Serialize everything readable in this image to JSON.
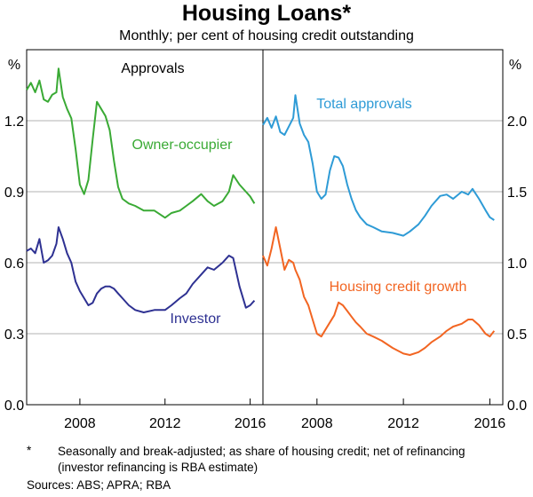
{
  "header": {
    "title": "Housing Loans*",
    "subtitle": "Monthly; per cent of housing credit outstanding"
  },
  "footer": {
    "footnote_mark": "*",
    "footnote": "Seasonally and break-adjusted; as share of housing credit; net of refinancing (investor refinancing is RBA estimate)",
    "sources": "Sources:   ABS; APRA; RBA"
  },
  "chart_data": [
    {
      "type": "line",
      "panel_title": "Approvals",
      "ylabel": "%",
      "ylim": [
        0,
        1.5
      ],
      "yticks": [
        0.0,
        0.3,
        0.6,
        0.9,
        1.2
      ],
      "ytick_labels": [
        "0.0",
        "0.3",
        "0.6",
        "0.9",
        "1.2"
      ],
      "xlim": [
        2005.5,
        2016.6
      ],
      "xticks": [
        2008,
        2012,
        2016
      ],
      "xtick_labels": [
        "2008",
        "2012",
        "2016"
      ],
      "grid": true,
      "series": [
        {
          "name": "Owner-occupier",
          "color": "#3aaa35",
          "x": [
            2005.5,
            2005.7,
            2005.9,
            2006.1,
            2006.3,
            2006.5,
            2006.7,
            2006.9,
            2007.0,
            2007.2,
            2007.4,
            2007.6,
            2007.8,
            2008.0,
            2008.2,
            2008.4,
            2008.6,
            2008.8,
            2009.0,
            2009.2,
            2009.4,
            2009.6,
            2009.8,
            2010.0,
            2010.3,
            2010.6,
            2011.0,
            2011.5,
            2012.0,
            2012.3,
            2012.7,
            2013.0,
            2013.3,
            2013.7,
            2014.0,
            2014.3,
            2014.7,
            2015.0,
            2015.2,
            2015.5,
            2015.8,
            2016.0,
            2016.2
          ],
          "values": [
            1.33,
            1.36,
            1.32,
            1.37,
            1.29,
            1.28,
            1.31,
            1.32,
            1.42,
            1.3,
            1.25,
            1.21,
            1.08,
            0.93,
            0.89,
            0.95,
            1.12,
            1.28,
            1.25,
            1.22,
            1.16,
            1.03,
            0.92,
            0.87,
            0.85,
            0.84,
            0.82,
            0.82,
            0.79,
            0.81,
            0.82,
            0.84,
            0.86,
            0.89,
            0.86,
            0.84,
            0.86,
            0.9,
            0.97,
            0.93,
            0.9,
            0.88,
            0.85
          ]
        },
        {
          "name": "Investor",
          "color": "#2e3192",
          "x": [
            2005.5,
            2005.7,
            2005.9,
            2006.1,
            2006.3,
            2006.5,
            2006.7,
            2006.9,
            2007.0,
            2007.2,
            2007.4,
            2007.6,
            2007.8,
            2008.0,
            2008.2,
            2008.4,
            2008.6,
            2008.8,
            2009.0,
            2009.2,
            2009.4,
            2009.6,
            2009.8,
            2010.0,
            2010.3,
            2010.6,
            2011.0,
            2011.5,
            2012.0,
            2012.3,
            2012.7,
            2013.0,
            2013.3,
            2013.7,
            2014.0,
            2014.3,
            2014.7,
            2015.0,
            2015.2,
            2015.5,
            2015.8,
            2016.0,
            2016.2
          ],
          "values": [
            0.65,
            0.66,
            0.64,
            0.7,
            0.6,
            0.61,
            0.63,
            0.68,
            0.75,
            0.7,
            0.64,
            0.6,
            0.52,
            0.48,
            0.45,
            0.42,
            0.43,
            0.47,
            0.49,
            0.5,
            0.5,
            0.49,
            0.47,
            0.45,
            0.42,
            0.4,
            0.39,
            0.4,
            0.4,
            0.42,
            0.45,
            0.47,
            0.51,
            0.55,
            0.58,
            0.57,
            0.6,
            0.63,
            0.62,
            0.5,
            0.41,
            0.42,
            0.44
          ]
        }
      ],
      "annotations": [
        {
          "text": "Owner-occupier",
          "color": "#3aaa35"
        },
        {
          "text": "Investor",
          "color": "#2e3192"
        }
      ]
    },
    {
      "type": "line",
      "panel_title": "",
      "ylabel": "%",
      "ylim": [
        0,
        2.5
      ],
      "yticks": [
        0.0,
        0.5,
        1.0,
        1.5,
        2.0
      ],
      "ytick_labels": [
        "0.0",
        "0.5",
        "1.0",
        "1.5",
        "2.0"
      ],
      "xlim": [
        2005.5,
        2016.6
      ],
      "xticks": [
        2008,
        2012,
        2016
      ],
      "xtick_labels": [
        "2008",
        "2012",
        "2016"
      ],
      "grid": true,
      "series": [
        {
          "name": "Total approvals",
          "color": "#2e9bd6",
          "x": [
            2005.5,
            2005.7,
            2005.9,
            2006.1,
            2006.3,
            2006.5,
            2006.7,
            2006.9,
            2007.0,
            2007.2,
            2007.4,
            2007.6,
            2007.8,
            2008.0,
            2008.2,
            2008.4,
            2008.6,
            2008.8,
            2009.0,
            2009.2,
            2009.4,
            2009.6,
            2009.8,
            2010.0,
            2010.3,
            2010.6,
            2011.0,
            2011.5,
            2012.0,
            2012.3,
            2012.7,
            2013.0,
            2013.3,
            2013.7,
            2014.0,
            2014.3,
            2014.7,
            2015.0,
            2015.2,
            2015.5,
            2015.8,
            2016.0,
            2016.2
          ],
          "values": [
            1.97,
            2.02,
            1.95,
            2.03,
            1.92,
            1.9,
            1.96,
            2.02,
            2.18,
            1.98,
            1.9,
            1.85,
            1.7,
            1.5,
            1.45,
            1.48,
            1.65,
            1.75,
            1.74,
            1.68,
            1.55,
            1.45,
            1.37,
            1.32,
            1.27,
            1.25,
            1.22,
            1.21,
            1.19,
            1.22,
            1.27,
            1.33,
            1.4,
            1.47,
            1.48,
            1.45,
            1.5,
            1.48,
            1.52,
            1.45,
            1.37,
            1.32,
            1.3
          ]
        },
        {
          "name": "Housing credit growth",
          "color": "#f26522",
          "x": [
            2005.5,
            2005.7,
            2005.9,
            2006.1,
            2006.3,
            2006.5,
            2006.7,
            2006.9,
            2007.0,
            2007.2,
            2007.4,
            2007.6,
            2007.8,
            2008.0,
            2008.2,
            2008.4,
            2008.6,
            2008.8,
            2009.0,
            2009.2,
            2009.4,
            2009.6,
            2009.8,
            2010.0,
            2010.3,
            2010.6,
            2011.0,
            2011.5,
            2012.0,
            2012.3,
            2012.7,
            2013.0,
            2013.3,
            2013.7,
            2014.0,
            2014.3,
            2014.7,
            2015.0,
            2015.2,
            2015.5,
            2015.8,
            2016.0,
            2016.2
          ],
          "values": [
            1.05,
            0.98,
            1.1,
            1.25,
            1.1,
            0.95,
            1.02,
            1.0,
            0.95,
            0.88,
            0.76,
            0.7,
            0.6,
            0.5,
            0.48,
            0.53,
            0.58,
            0.63,
            0.72,
            0.7,
            0.66,
            0.62,
            0.58,
            0.55,
            0.5,
            0.48,
            0.45,
            0.4,
            0.36,
            0.35,
            0.37,
            0.4,
            0.44,
            0.48,
            0.52,
            0.55,
            0.57,
            0.6,
            0.6,
            0.56,
            0.5,
            0.48,
            0.52
          ]
        }
      ],
      "annotations": [
        {
          "text": "Total approvals",
          "color": "#2e9bd6"
        },
        {
          "text": "Housing credit growth",
          "color": "#f26522"
        }
      ]
    }
  ]
}
